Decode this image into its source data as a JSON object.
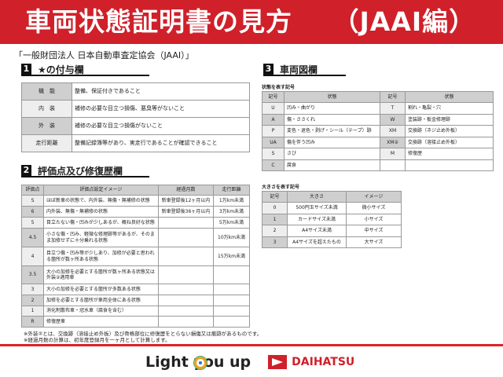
{
  "title": "車両状態証明書の見方　　（JAAI編）",
  "subtitle": "「一般財団法人 日本自動車査定協会（JAAI）」",
  "section1": {
    "num": "1",
    "title": "★の付与欄",
    "rows": [
      {
        "label": "機　能",
        "text": "整備、保証付きであること"
      },
      {
        "label": "内　装",
        "text": "補修の必要な目立つ損傷、悪臭等がないこと"
      },
      {
        "label": "外　装",
        "text": "補修の必要な目立つ損傷がないこと"
      },
      {
        "label": "走行距離",
        "text": "整備記録簿等があり、実走行であることが確認できること"
      }
    ]
  },
  "section2": {
    "num": "2",
    "title": "評価点及び修復歴欄",
    "headers": [
      "評価点",
      "評価点設定イメージ",
      "経過月数",
      "走行距離"
    ],
    "rows": [
      [
        "S",
        "ほぼ新車の状態で、内外装、無傷・無補修の状態",
        "新車登録後12ヶ月以内",
        "1万km未満"
      ],
      [
        "6",
        "内外装、無傷・無補修の状態",
        "新車登録後36ヶ月以内",
        "3万km未満"
      ],
      [
        "5",
        "目立たない傷・凹みが少しあるが、概ね良好な状態",
        "",
        "5万km未満"
      ],
      [
        "4.5",
        "小さな傷・凹み、軽微な修理跡等があるが、そのまま加修せずに十分乗れる状態",
        "",
        "10万km未満"
      ],
      [
        "4",
        "目立つ傷・凹み等が少しあり、加修が必要と思われる箇所が数ヶ所ある状態",
        "",
        "15万km未満"
      ],
      [
        "3.5",
        "大小の加修を必要とする箇所が数ヶ所ある状態又は外装②適用車",
        "",
        ""
      ],
      [
        "3",
        "大小の加修を必要とする箇所が多数ある状態",
        "",
        ""
      ],
      [
        "2",
        "加修を必要とする箇所が車両全体にある状態",
        "",
        ""
      ],
      [
        "1",
        "消化剤散布車・冠水車（腐食を含む）",
        "",
        ""
      ],
      [
        "R",
        "修復歴車",
        "",
        ""
      ]
    ]
  },
  "notes": [
    "※外装②とは、交換跡（溶接止め外板）及び骨格部位に修復歴をとらない損傷又は痕跡があるものです。",
    "※経過月数の計算は、初年度登録月を一ヶ月として計算します。"
  ],
  "section3": {
    "num": "3",
    "title": "車両図欄",
    "state_label": "状態を表す記号",
    "state_headers": [
      "記号",
      "状態",
      "記号",
      "状態"
    ],
    "state_rows": [
      [
        "U",
        "凹み・曲がり",
        "T",
        "割れ・亀裂・穴"
      ],
      [
        "A",
        "傷・ささくれ",
        "W",
        "塗装跡・板金修理跡"
      ],
      [
        "P",
        "変色・退色・剥げ・シール（テープ）跡",
        "XM",
        "交換跡（ネジ止め外板）"
      ],
      [
        "UA",
        "傷を伴う凹み",
        "XM②",
        "交換跡（溶接止め外板）"
      ],
      [
        "S",
        "さび",
        "M",
        "修復歴"
      ],
      [
        "C",
        "腐食",
        "",
        ""
      ]
    ],
    "size_label": "大きさを表す記号",
    "size_headers": [
      "記号",
      "大きさ",
      "イメージ"
    ],
    "size_rows": [
      [
        "0",
        "500円玉サイズ未満",
        "微小サイズ"
      ],
      [
        "1",
        "カードサイズ未満",
        "小サイズ"
      ],
      [
        "2",
        "A4サイズ未満",
        "中サイズ"
      ],
      [
        "3",
        "A4サイズを超えたもの",
        "大サイズ"
      ]
    ]
  },
  "footer": {
    "slogan": "Light you up",
    "brand": "DAIHATSU"
  },
  "colors": {
    "banner": "#d0202a",
    "header_gray": "#cfcfcf"
  }
}
